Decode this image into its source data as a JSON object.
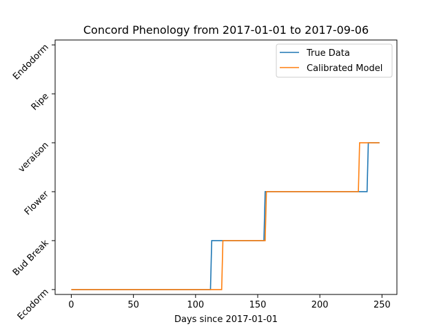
{
  "chart_data": {
    "type": "line",
    "title": "Concord Phenology from 2017-01-01 to 2017-09-06",
    "xlabel": "Days since 2017-01-01",
    "ylabel": "",
    "xlim": [
      -13,
      262
    ],
    "ylim": [
      -0.1,
      5.1
    ],
    "x_ticks": [
      0,
      50,
      100,
      150,
      200,
      250
    ],
    "y_ticks": [
      0,
      1,
      2,
      3,
      4,
      5
    ],
    "y_tick_labels": [
      "Ecodorm",
      "Bud Break",
      "Flower",
      "veraison",
      "Ripe",
      "Endodorm"
    ],
    "legend_position": "upper-right",
    "series": [
      {
        "name": "True Data",
        "color": "#1f77b4",
        "points": [
          [
            0,
            0
          ],
          [
            112,
            0
          ],
          [
            113,
            1
          ],
          [
            155,
            1
          ],
          [
            156,
            2
          ],
          [
            238,
            2
          ],
          [
            239,
            3
          ],
          [
            248,
            3
          ]
        ]
      },
      {
        "name": "Calibrated Model",
        "color": "#ff7f0e",
        "points": [
          [
            0,
            0
          ],
          [
            121,
            0
          ],
          [
            122,
            1
          ],
          [
            156,
            1
          ],
          [
            157,
            2
          ],
          [
            231,
            2
          ],
          [
            232,
            3
          ],
          [
            248,
            3
          ]
        ]
      }
    ]
  }
}
